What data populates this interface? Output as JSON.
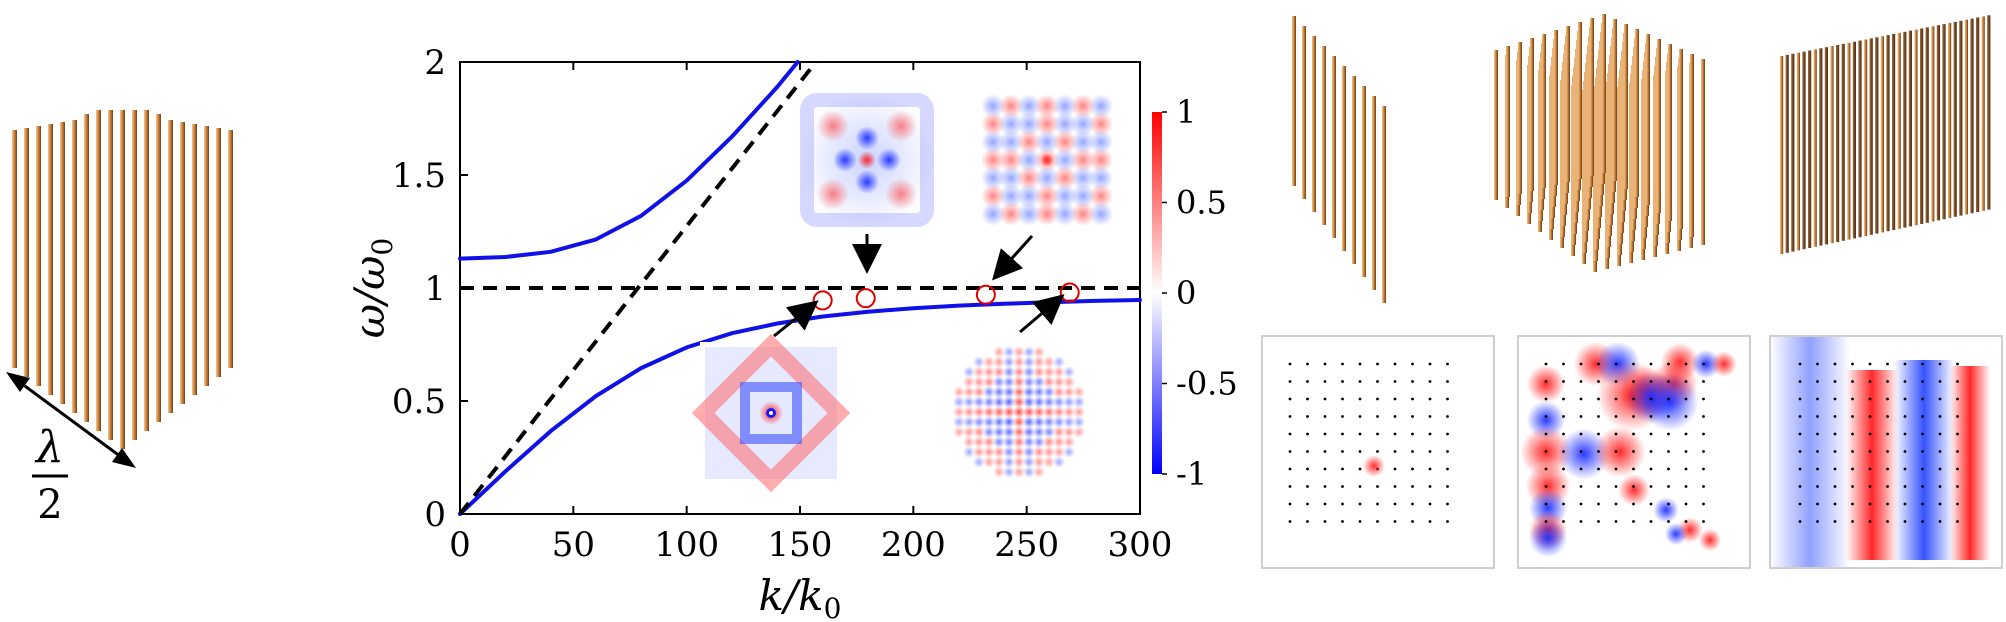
{
  "chart_data": {
    "type": "line",
    "xlabel_main": "k/k",
    "xlabel_sub": "0",
    "ylabel_main": "ω/ω",
    "ylabel_sub": "0",
    "xlim": [
      0,
      300
    ],
    "ylim": [
      0,
      2
    ],
    "x_ticks": [
      0,
      50,
      100,
      150,
      200,
      250,
      300
    ],
    "y_ticks": [
      0,
      0.5,
      1,
      1.5,
      2
    ],
    "y_tick_labels": [
      "0",
      "0.5",
      "1",
      "1.5",
      "2"
    ],
    "series": [
      {
        "color": "#1010e8",
        "style": "solid",
        "x": [
          0,
          20,
          40,
          60,
          80,
          100,
          120,
          140,
          160,
          180,
          200,
          220,
          240,
          260,
          280,
          300
        ],
        "y": [
          0,
          0.188,
          0.367,
          0.522,
          0.646,
          0.737,
          0.8,
          0.843,
          0.874,
          0.895,
          0.91,
          0.922,
          0.93,
          0.937,
          0.943,
          0.947
        ]
      },
      {
        "color": "#1010e8",
        "style": "solid",
        "x": [
          0,
          20,
          40,
          60,
          80,
          100,
          120,
          140,
          149
        ],
        "y": [
          1.13,
          1.137,
          1.16,
          1.215,
          1.32,
          1.475,
          1.67,
          1.89,
          2.0
        ]
      },
      {
        "color": "#000000",
        "style": "dashed",
        "x": [
          0,
          157
        ],
        "y": [
          0,
          2.0
        ]
      },
      {
        "color": "#000000",
        "style": "dashed",
        "x": [
          0,
          300
        ],
        "y": [
          1,
          1
        ]
      }
    ],
    "markers": [
      {
        "x": 160,
        "y": 0.945
      },
      {
        "x": 179,
        "y": 0.955
      },
      {
        "x": 232,
        "y": 0.97
      },
      {
        "x": 269,
        "y": 0.98
      }
    ],
    "colorbar": {
      "range": [
        -1,
        1
      ],
      "ticks": [
        1,
        0.5,
        0,
        -0.5,
        -1
      ],
      "tick_labels": [
        "1",
        "0.5",
        "0",
        "-0.5",
        "-1"
      ],
      "colors": [
        "#ff0000",
        "#ffffff",
        "#0000ff"
      ]
    }
  },
  "lattice_label": {
    "numerator": "λ",
    "denominator": "2"
  }
}
